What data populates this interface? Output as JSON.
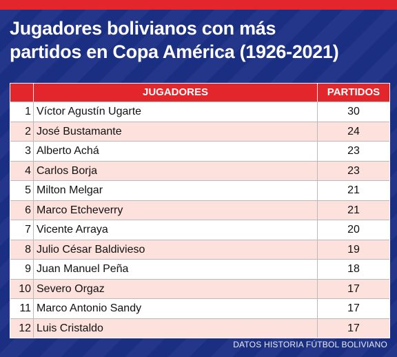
{
  "colors": {
    "background": "#1b2f86",
    "accent": "#e3262b",
    "row_alt": "#fce1dc"
  },
  "title": {
    "line1": "Jugadores bolivianos con más",
    "line2": "partidos en Copa América (1926-2021)"
  },
  "table": {
    "headers": {
      "rank": "",
      "player": "JUGADORES",
      "matches": "PARTIDOS"
    },
    "rows": [
      {
        "rank": "1",
        "player": "Víctor Agustín Ugarte",
        "matches": "30"
      },
      {
        "rank": "2",
        "player": "José Bustamante",
        "matches": "24"
      },
      {
        "rank": "3",
        "player": "Alberto Achá",
        "matches": "23"
      },
      {
        "rank": "4",
        "player": "Carlos Borja",
        "matches": "23"
      },
      {
        "rank": "5",
        "player": "Milton Melgar",
        "matches": "21"
      },
      {
        "rank": "6",
        "player": "Marco Etcheverry",
        "matches": "21"
      },
      {
        "rank": "7",
        "player": "Vicente Arraya",
        "matches": "20"
      },
      {
        "rank": "8",
        "player": "Julio César Baldivieso",
        "matches": "19"
      },
      {
        "rank": "9",
        "player": "Juan Manuel Peña",
        "matches": "18"
      },
      {
        "rank": "10",
        "player": "Severo Orgaz",
        "matches": "17"
      },
      {
        "rank": "11",
        "player": "Marco Antonio Sandy",
        "matches": "17"
      },
      {
        "rank": "12",
        "player": "Luis Cristaldo",
        "matches": "17"
      }
    ]
  },
  "source": "DATOS HISTORIA FÚTBOL BOLIVIANO"
}
